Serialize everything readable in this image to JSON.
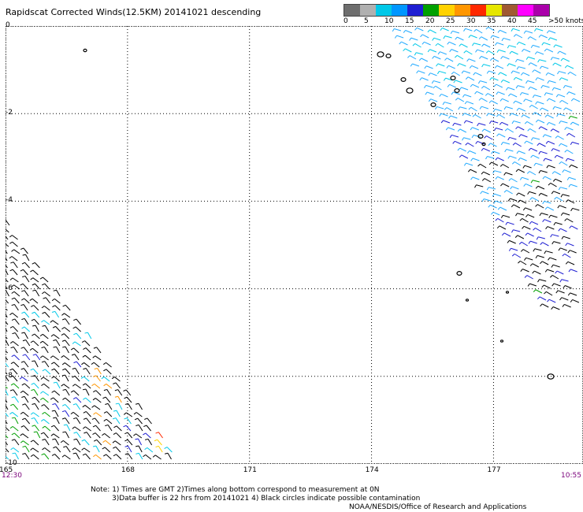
{
  "header": {
    "title": "Rapidscat Corrected Winds(12.5KM) 20141021 descending"
  },
  "colorbar": {
    "labels": [
      "0",
      "5",
      "10",
      "15",
      "20",
      "25",
      "30",
      "35",
      "40",
      "45",
      ">50 knots"
    ],
    "colors": [
      "#6e6e6e",
      "#b0b0b0",
      "#00c8e8",
      "#0096ff",
      "#1e1ed2",
      "#00a000",
      "#ffd200",
      "#ff9600",
      "#ff2800",
      "#e6e600",
      "#a05a32",
      "#ff00ff",
      "#aa00aa"
    ]
  },
  "map": {
    "lat_labels": [
      "0",
      "-2",
      "-4",
      "-6",
      "-8",
      "-10"
    ],
    "lon_labels": [
      "165",
      "168",
      "171",
      "174",
      "177"
    ],
    "lat_range": [
      -10,
      0
    ],
    "lon_range": [
      165,
      179
    ],
    "gridlines": "dotted"
  },
  "times": {
    "start": "12:30",
    "end": "10:55"
  },
  "notes": {
    "line1": "Note: 1) Times are GMT 2)Times along bottom correspond to measurement at 0N",
    "line2": "3)Data buffer is 22 hrs from 20141021 4) Black circles indicate possible contamination",
    "line3": "NOAA/NESDIS/Office of Research and Applications"
  }
}
